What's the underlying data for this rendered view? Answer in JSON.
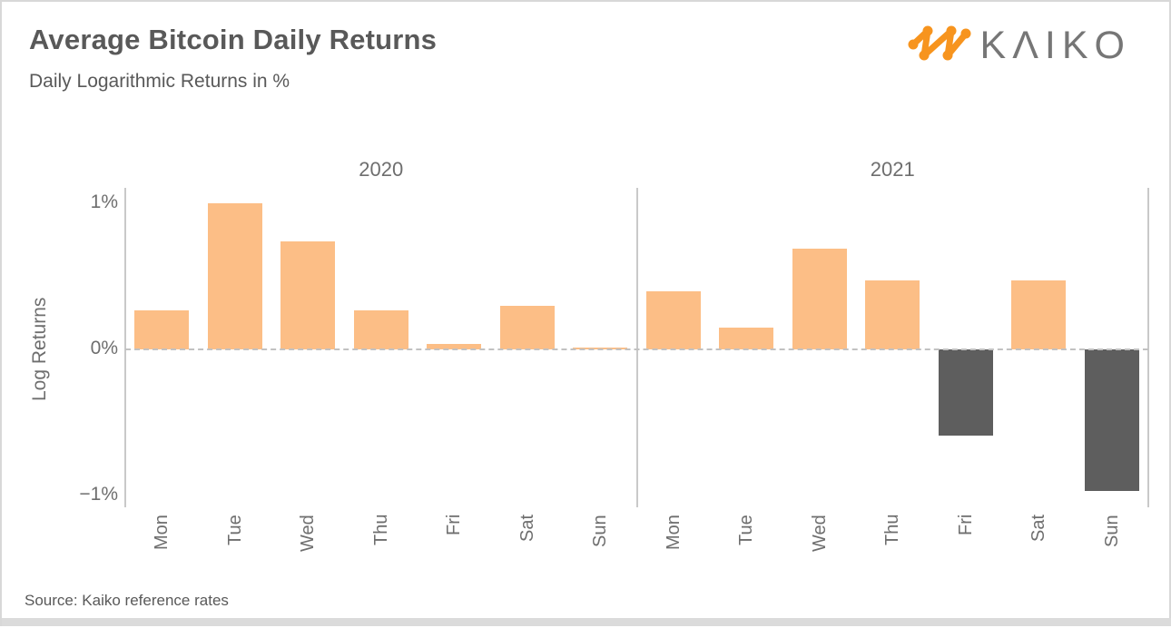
{
  "header": {
    "title": "Average Bitcoin Daily Returns",
    "subtitle": "Daily Logarithmic Returns in %",
    "logo_text": "KΛIKO"
  },
  "footer": {
    "source": "Source: Kaiko reference rates"
  },
  "colors": {
    "positive_bar": "#FCBE86",
    "negative_bar": "#5E5E5E",
    "axis_line": "#C9C9C9",
    "zero_line": "#C2C2C2",
    "text_dark": "#595959",
    "text_gray": "#6E6E6E",
    "logo_orange": "#F7941E",
    "logo_gray": "#767676"
  },
  "chart_data": {
    "type": "bar",
    "title": "Average Bitcoin Daily Returns",
    "subtitle": "Daily Logarithmic Returns in %",
    "ylabel": "Log Returns",
    "ylim": [
      -1.1,
      1.1
    ],
    "yticks": [
      {
        "label": "1%",
        "value": 1
      },
      {
        "label": "0%",
        "value": 0
      },
      {
        "label": "−1%",
        "value": -1
      }
    ],
    "grid": "dashed zero line only",
    "legend": "none",
    "categories": [
      "Mon",
      "Tue",
      "Wed",
      "Thu",
      "Fri",
      "Sat",
      "Sun"
    ],
    "panels": [
      {
        "title": "2020",
        "values": [
          0.27,
          1.0,
          0.74,
          0.27,
          0.04,
          0.3,
          0.01
        ]
      },
      {
        "title": "2021",
        "values": [
          0.4,
          0.15,
          0.69,
          0.47,
          -0.59,
          0.47,
          -0.97
        ]
      }
    ]
  }
}
